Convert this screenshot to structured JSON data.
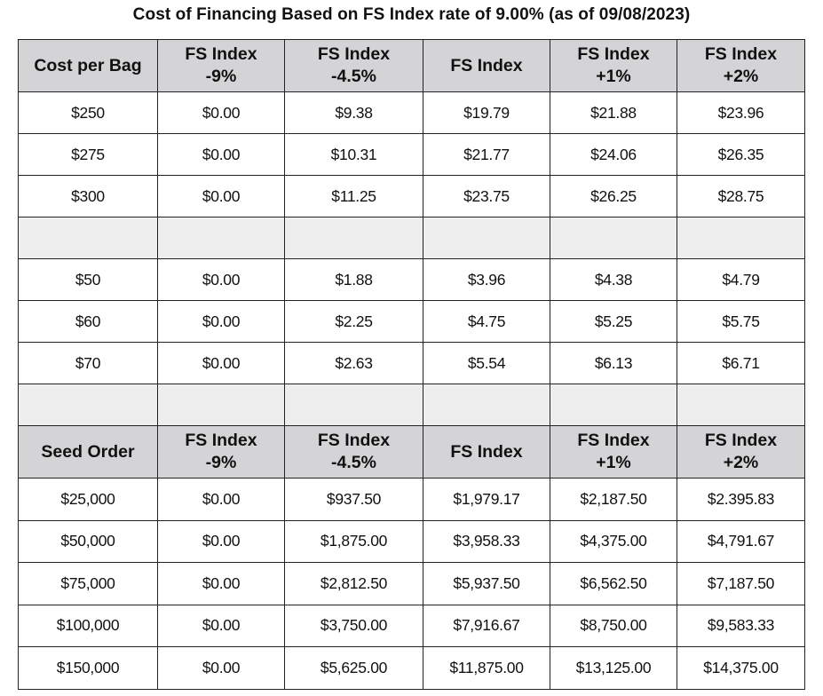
{
  "title": "Cost of Financing Based on FS Index rate of 9.00% (as of 09/08/2023)",
  "table1": {
    "headers": [
      {
        "l1": "Cost per Bag",
        "l2": ""
      },
      {
        "l1": "FS Index",
        "l2": "-9%"
      },
      {
        "l1": "FS Index",
        "l2": "-4.5%"
      },
      {
        "l1": "FS Index",
        "l2": ""
      },
      {
        "l1": "FS Index",
        "l2": "+1%"
      },
      {
        "l1": "FS Index",
        "l2": "+2%"
      }
    ],
    "rows": [
      [
        "$250",
        "$0.00",
        "$9.38",
        "$19.79",
        "$21.88",
        "$23.96"
      ],
      [
        "$275",
        "$0.00",
        "$10.31",
        "$21.77",
        "$24.06",
        "$26.35"
      ],
      [
        "$300",
        "$0.00",
        "$11.25",
        "$23.75",
        "$26.25",
        "$28.75"
      ]
    ],
    "rows2": [
      [
        "$50",
        "$0.00",
        "$1.88",
        "$3.96",
        "$4.38",
        "$4.79"
      ],
      [
        "$60",
        "$0.00",
        "$2.25",
        "$4.75",
        "$5.25",
        "$5.75"
      ],
      [
        "$70",
        "$0.00",
        "$2.63",
        "$5.54",
        "$6.13",
        "$6.71"
      ]
    ]
  },
  "table2": {
    "headers": [
      {
        "l1": "Seed Order",
        "l2": ""
      },
      {
        "l1": "FS Index",
        "l2": "-9%"
      },
      {
        "l1": "FS Index",
        "l2": "-4.5%"
      },
      {
        "l1": "FS Index",
        "l2": ""
      },
      {
        "l1": "FS Index",
        "l2": "+1%"
      },
      {
        "l1": "FS Index",
        "l2": "+2%"
      }
    ],
    "rows": [
      [
        "$25,000",
        "$0.00",
        "$937.50",
        "$1,979.17",
        "$2,187.50",
        "$2.395.83"
      ],
      [
        "$50,000",
        "$0.00",
        "$1,875.00",
        "$3,958.33",
        "$4,375.00",
        "$4,791.67"
      ],
      [
        "$75,000",
        "$0.00",
        "$2,812.50",
        "$5,937.50",
        "$6,562.50",
        "$7,187.50"
      ],
      [
        "$100,000",
        "$0.00",
        "$3,750.00",
        "$7,916.67",
        "$8,750.00",
        "$9,583.33"
      ],
      [
        "$150,000",
        "$0.00",
        "$5,625.00",
        "$11,875.00",
        "$13,125.00",
        "$14,375.00"
      ]
    ]
  }
}
